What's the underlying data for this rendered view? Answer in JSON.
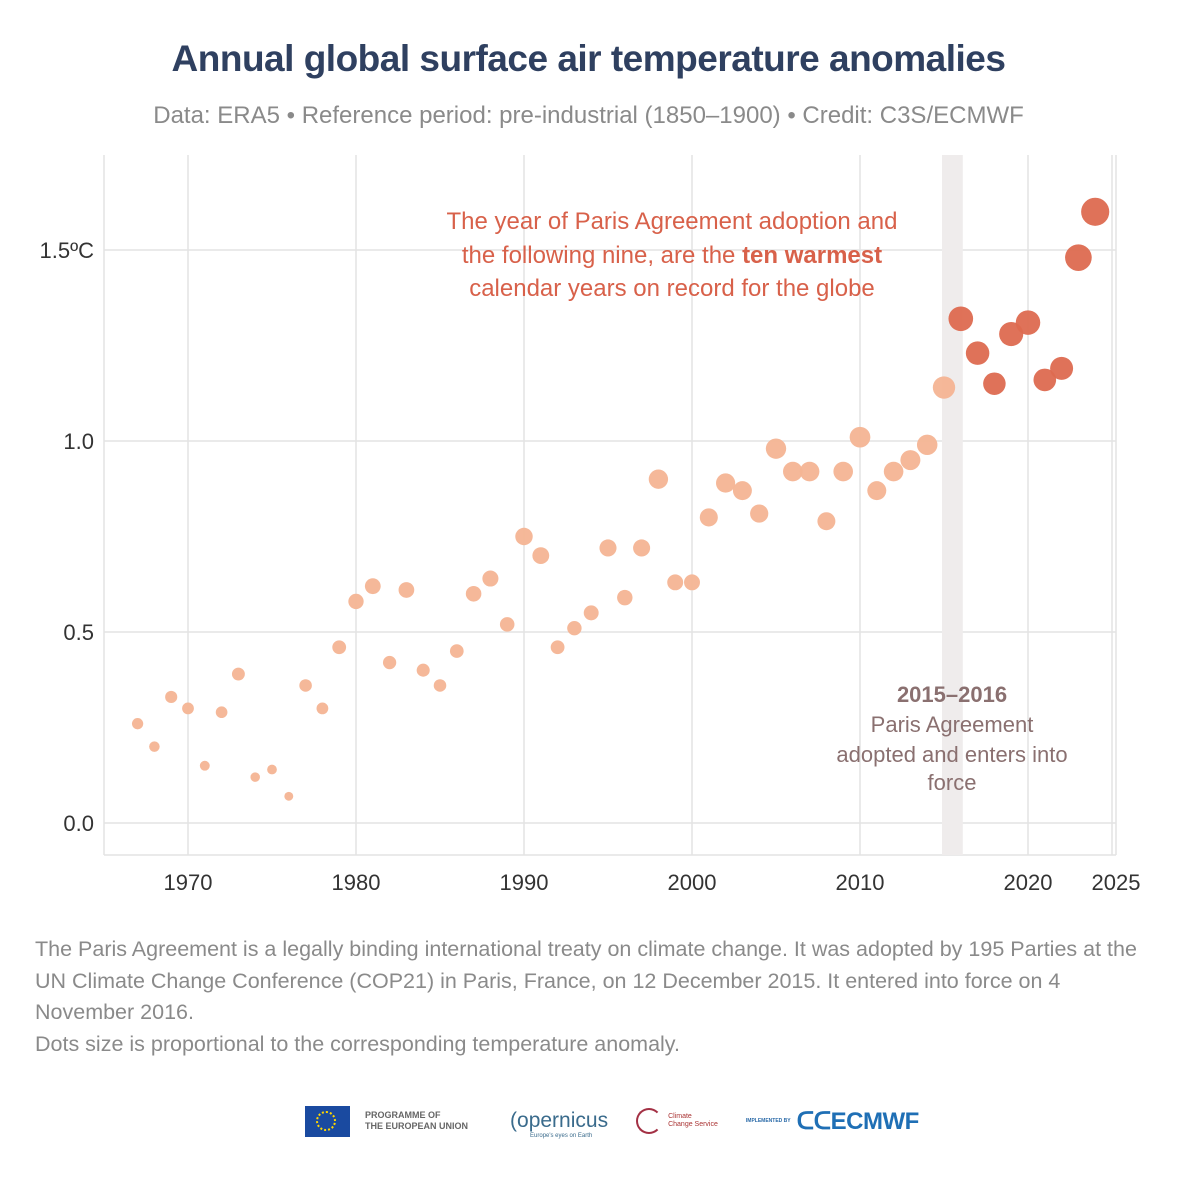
{
  "title": "Annual global surface air temperature anomalies",
  "subtitle": "Data: ERA5 • Reference period: pre-industrial (1850–1900) • Credit: C3S/ECMWF",
  "chart_data": {
    "type": "scatter",
    "title": "Annual global surface air temperature anomalies",
    "xlabel": "",
    "ylabel": "",
    "xlim": [
      1965,
      2025.5
    ],
    "ylim": [
      -0.08,
      1.74
    ],
    "grid": true,
    "x_ticks": [
      "1970",
      "1980",
      "1990",
      "2000",
      "2010",
      "2020",
      "2025"
    ],
    "x_tick_values": [
      1970,
      1980,
      1990,
      2000,
      2010,
      2020,
      2025
    ],
    "y_ticks": [
      "0.0",
      "0.5",
      "1.0",
      "1.5ºC"
    ],
    "y_tick_values": [
      0,
      0.5,
      1.0,
      1.5
    ],
    "size_encoding": "proportional to temperature anomaly",
    "colors": {
      "earlier_years": "#f4b494",
      "ten_warmest": "#dd6a50",
      "band": "#efecec",
      "annotation": "#d8614a",
      "band_label": "#8a7070"
    },
    "x": [
      1967,
      1968,
      1969,
      1970,
      1971,
      1972,
      1973,
      1974,
      1975,
      1976,
      1977,
      1978,
      1979,
      1980,
      1981,
      1982,
      1983,
      1984,
      1985,
      1986,
      1987,
      1988,
      1989,
      1990,
      1991,
      1992,
      1993,
      1994,
      1995,
      1996,
      1997,
      1998,
      1999,
      2000,
      2001,
      2002,
      2003,
      2004,
      2005,
      2006,
      2007,
      2008,
      2009,
      2010,
      2011,
      2012,
      2013,
      2014,
      2015,
      2016,
      2017,
      2018,
      2019,
      2020,
      2021,
      2022,
      2023,
      2024
    ],
    "y": [
      0.26,
      0.2,
      0.33,
      0.3,
      0.15,
      0.29,
      0.39,
      0.12,
      0.14,
      0.07,
      0.36,
      0.3,
      0.46,
      0.58,
      0.62,
      0.42,
      0.61,
      0.4,
      0.36,
      0.45,
      0.6,
      0.64,
      0.52,
      0.75,
      0.7,
      0.46,
      0.51,
      0.55,
      0.72,
      0.59,
      0.72,
      0.9,
      0.63,
      0.63,
      0.8,
      0.89,
      0.87,
      0.81,
      0.98,
      0.92,
      0.92,
      0.79,
      0.92,
      1.01,
      0.87,
      0.92,
      0.95,
      0.99,
      1.14,
      1.32,
      1.23,
      1.15,
      1.28,
      1.31,
      1.16,
      1.19,
      1.48,
      1.6
    ],
    "highlight_from_year": 2015,
    "band": {
      "from": 2015,
      "to": 2016
    },
    "annotation": {
      "line1": "The year of Paris Agreement adoption and",
      "line2_pre": "the following nine, are the ",
      "line2_bold": "ten warmest",
      "line3": "calendar years on record for the globe"
    },
    "band_label": {
      "years": "2015–2016",
      "line1": "Paris Agreement",
      "line2": "adopted and enters into",
      "line3": "force"
    }
  },
  "footnote": {
    "line1": "The Paris Agreement is a legally binding international treaty on climate change. It was adopted by 195 Parties at the UN Climate Change Conference (COP21) in Paris, France, on 12 December 2015. It entered into force on 4 November 2016.",
    "line2": "Dots size is proportional to the corresponding temperature anomaly."
  },
  "logos": {
    "eu_line1": "PROGRAMME OF",
    "eu_line2": "THE EUROPEAN UNION",
    "copernicus": "opernicus",
    "copernicus_tagline": "Europe's eyes on Earth",
    "c3s_line1": "Climate",
    "c3s_line2": "Change Service",
    "implemented_by": "IMPLEMENTED BY",
    "ecmwf": "ECMWF"
  }
}
